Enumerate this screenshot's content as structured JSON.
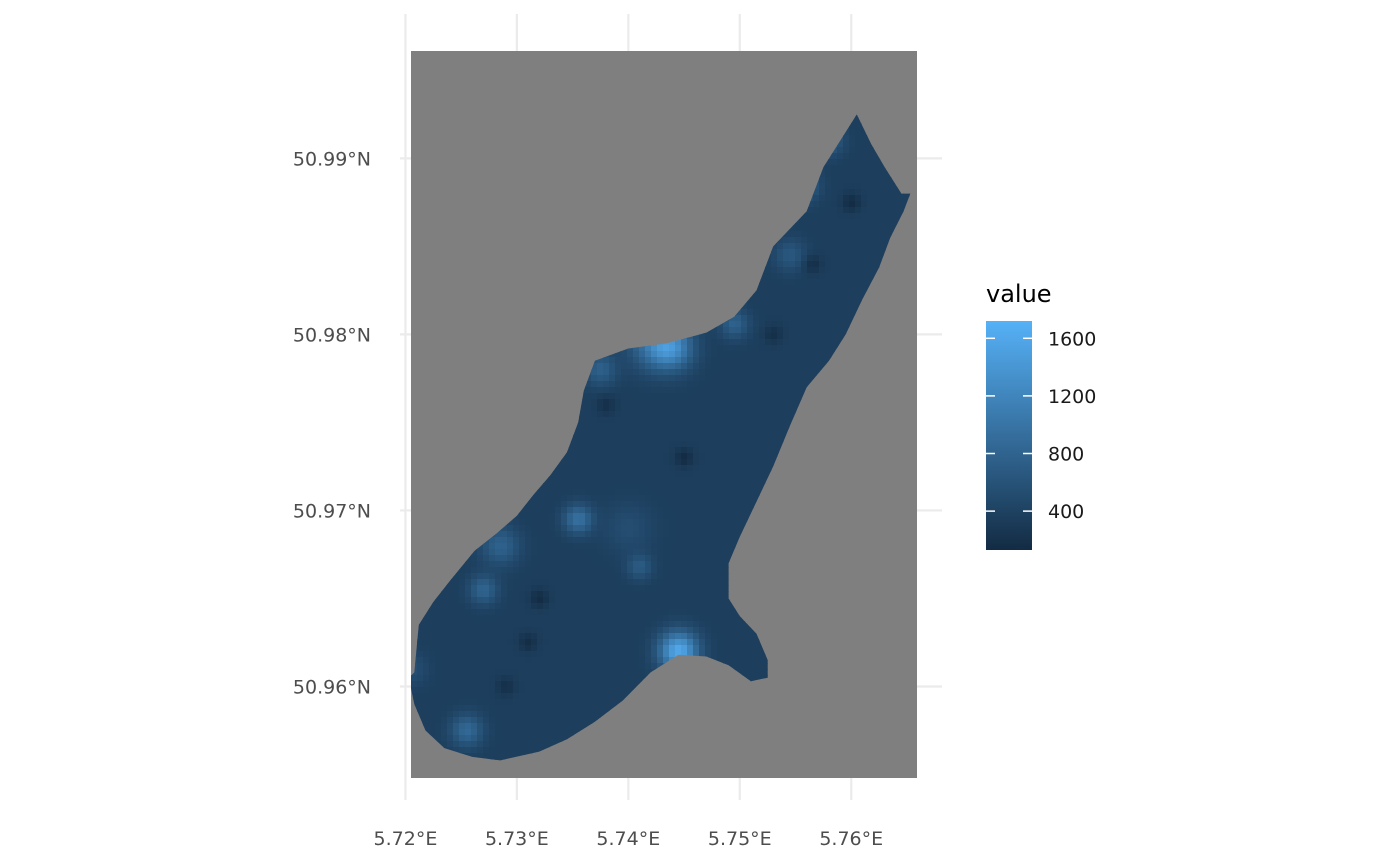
{
  "map": {
    "panel_fill": "#7f7f7f",
    "x_axis": {
      "label": "",
      "ticks": [
        "5.72°E",
        "5.73°E",
        "5.74°E",
        "5.75°E",
        "5.76°E"
      ],
      "tick_values": [
        5.72,
        5.73,
        5.74,
        5.75,
        5.76
      ],
      "range": [
        5.7205,
        5.7659
      ]
    },
    "y_axis": {
      "label": "",
      "ticks": [
        "50.99°N",
        "50.98°N",
        "50.97°N",
        "50.96°N"
      ],
      "tick_values": [
        50.99,
        50.98,
        50.97,
        50.96
      ],
      "range": [
        50.9548,
        50.9961
      ]
    },
    "grid": true,
    "legend": {
      "title": "value",
      "position": "right",
      "labels": [
        "1600",
        "1200",
        "800",
        "400"
      ],
      "label_values": [
        1600,
        1200,
        800,
        400
      ],
      "range": [
        130,
        1720
      ],
      "color_low": "#132b43",
      "color_high": "#56b1f7"
    },
    "region_outline_lonlat": [
      [
        5.7203,
        50.9605
      ],
      [
        5.7208,
        50.9608
      ],
      [
        5.7212,
        50.9635
      ],
      [
        5.7225,
        50.9648
      ],
      [
        5.724,
        50.966
      ],
      [
        5.7262,
        50.9677
      ],
      [
        5.7282,
        50.9687
      ],
      [
        5.73,
        50.9697
      ],
      [
        5.7315,
        50.9709
      ],
      [
        5.733,
        50.972
      ],
      [
        5.7345,
        50.9733
      ],
      [
        5.7355,
        50.975
      ],
      [
        5.736,
        50.9768
      ],
      [
        5.737,
        50.9785
      ],
      [
        5.74,
        50.9792
      ],
      [
        5.7435,
        50.9795
      ],
      [
        5.747,
        50.9801
      ],
      [
        5.7495,
        50.981
      ],
      [
        5.7515,
        50.9825
      ],
      [
        5.753,
        50.985
      ],
      [
        5.756,
        50.987
      ],
      [
        5.7575,
        50.9895
      ],
      [
        5.7595,
        50.9915
      ],
      [
        5.7605,
        50.9925
      ],
      [
        5.7618,
        50.9908
      ],
      [
        5.763,
        50.9895
      ],
      [
        5.7645,
        50.988
      ],
      [
        5.7653,
        50.988
      ],
      [
        5.7647,
        50.987
      ],
      [
        5.7635,
        50.9855
      ],
      [
        5.7625,
        50.9838
      ],
      [
        5.761,
        50.982
      ],
      [
        5.7595,
        50.98
      ],
      [
        5.758,
        50.9785
      ],
      [
        5.756,
        50.977
      ],
      [
        5.7545,
        50.9748
      ],
      [
        5.753,
        50.9725
      ],
      [
        5.7515,
        50.9705
      ],
      [
        5.75,
        50.9685
      ],
      [
        5.749,
        50.967
      ],
      [
        5.749,
        50.965
      ],
      [
        5.75,
        50.964
      ],
      [
        5.7515,
        50.963
      ],
      [
        5.7525,
        50.9615
      ],
      [
        5.7525,
        50.9605
      ],
      [
        5.751,
        50.9603
      ],
      [
        5.749,
        50.9612
      ],
      [
        5.747,
        50.9617
      ],
      [
        5.7445,
        50.9618
      ],
      [
        5.742,
        50.9608
      ],
      [
        5.7395,
        50.9592
      ],
      [
        5.737,
        50.958
      ],
      [
        5.7345,
        50.957
      ],
      [
        5.732,
        50.9563
      ],
      [
        5.7285,
        50.9558
      ],
      [
        5.726,
        50.956
      ],
      [
        5.7235,
        50.9565
      ],
      [
        5.7218,
        50.9575
      ],
      [
        5.7208,
        50.959
      ]
    ]
  }
}
